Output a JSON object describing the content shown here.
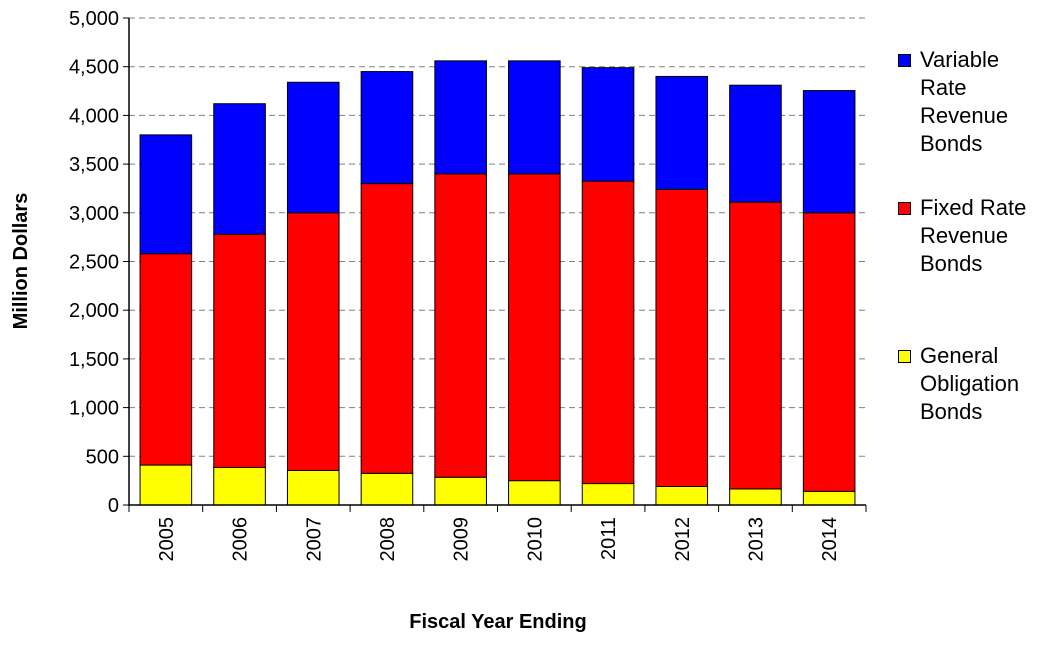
{
  "chart_data": {
    "type": "bar",
    "stacked": true,
    "title": "",
    "xlabel": "Fiscal Year Ending",
    "ylabel": "Million Dollars",
    "categories": [
      "2005",
      "2006",
      "2007",
      "2008",
      "2009",
      "2010",
      "2011",
      "2012",
      "2013",
      "2014"
    ],
    "ylim": [
      0,
      5000
    ],
    "yticks": [
      0,
      500,
      1000,
      1500,
      2000,
      2500,
      3000,
      3500,
      4000,
      4500,
      5000
    ],
    "ytick_labels": [
      "0",
      "500",
      "1,000",
      "1,500",
      "2,000",
      "2,500",
      "3,000",
      "3,500",
      "4,000",
      "4,500",
      "5,000"
    ],
    "grid": "horizontal dashed",
    "legend_position": "right",
    "series": [
      {
        "name": "General Obligation Bonds",
        "color": "#ffff00",
        "values": [
          410,
          385,
          355,
          325,
          285,
          250,
          220,
          190,
          165,
          140
        ]
      },
      {
        "name": "Fixed Rate Revenue Bonds",
        "color": "#ff0000",
        "values": [
          2170,
          2395,
          2645,
          2975,
          3115,
          3150,
          3105,
          3050,
          2945,
          2860
        ]
      },
      {
        "name": "Variable Rate Revenue Bonds",
        "color": "#0000ff",
        "values": [
          1220,
          1340,
          1340,
          1150,
          1160,
          1160,
          1165,
          1160,
          1200,
          1255
        ]
      }
    ],
    "legend_order": [
      {
        "series": 2,
        "label": "Variable Rate Revenue Bonds"
      },
      {
        "series": 1,
        "label": "Fixed Rate Revenue Bonds"
      },
      {
        "series": 0,
        "label": "General Obligation Bonds"
      }
    ]
  }
}
